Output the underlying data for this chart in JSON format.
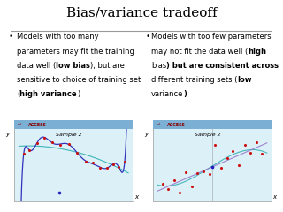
{
  "title": "Bias/variance tradeoff",
  "title_fontsize": 11,
  "text_fontsize": 6.0,
  "header_color": "#7BAFD4",
  "panel_bg": "#DCF0F8",
  "line_color_blue": "#3333BB",
  "line_color_cyan": "#22AAAA",
  "line_color_purple": "#9977CC",
  "dot_color": "#CC1111",
  "dot_color2": "#2222BB",
  "background_color": "#FFFFFF",
  "left_lines": [
    "Models with too many",
    "parameters may fit the training",
    "data well (**low bias**), but are",
    "sensitive to choice of training set",
    "(**high variance**)"
  ],
  "right_lines": [
    "Models with too few parameters",
    "may not fit the data well (**high",
    "bias**) but are consistent across",
    "different training sets (**low",
    "variance**)"
  ]
}
